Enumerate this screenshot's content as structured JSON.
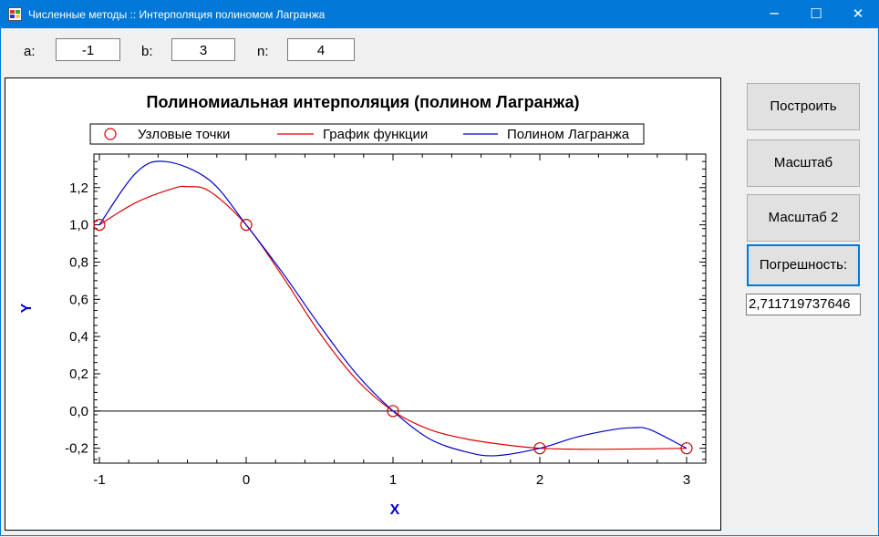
{
  "window": {
    "title": "Численные методы :: Интерполяция полиномом Лагранжа",
    "minimize": "─",
    "maximize": "☐",
    "close": "✕"
  },
  "params": {
    "a_label": "a:",
    "a_value": "-1",
    "b_label": "b:",
    "b_value": "3",
    "n_label": "n:",
    "n_value": "4"
  },
  "buttons": {
    "build": "Построить",
    "scale": "Масштаб",
    "scale2": "Масштаб 2",
    "error": "Погрешность:"
  },
  "error_value": "2,711719737646",
  "chart_data": {
    "type": "line",
    "title": "Полиномиальная интерполяция (полином Лагранжа)",
    "xlabel": "X",
    "ylabel": "Y",
    "xlim": [
      -1,
      3
    ],
    "ylim": [
      -0.28,
      1.38
    ],
    "xticks": [
      -1,
      0,
      1,
      2,
      3
    ],
    "xtick_labels": [
      "-1",
      "0",
      "1",
      "2",
      "3"
    ],
    "yticks": [
      -0.2,
      0,
      0.2,
      0.4,
      0.6,
      0.8,
      1.0,
      1.2
    ],
    "ytick_labels": [
      "-0,2",
      "0,0",
      "0,2",
      "0,4",
      "0,6",
      "0,8",
      "1,0",
      "1,2"
    ],
    "legend_position": "top",
    "series": [
      {
        "name": "Узловые точки",
        "kind": "markers",
        "color": "#cc0000",
        "x": [
          -1,
          0,
          1,
          2,
          3
        ],
        "y": [
          1.0,
          1.0,
          0.0,
          -0.2,
          -0.2
        ]
      },
      {
        "name": "График функции",
        "kind": "line",
        "color": "#dd0000",
        "x": [
          -1,
          -0.75,
          -0.5,
          -0.4,
          -0.25,
          0,
          0.25,
          0.5,
          0.75,
          1,
          1.25,
          1.5,
          1.75,
          2,
          2.25,
          2.5,
          2.75,
          3
        ],
        "y": [
          1.0,
          1.12,
          1.195,
          1.205,
          1.18,
          1.0,
          0.72,
          0.42,
          0.17,
          0.0,
          -0.1,
          -0.15,
          -0.18,
          -0.2,
          -0.205,
          -0.205,
          -0.203,
          -0.2
        ]
      },
      {
        "name": "Полином Лагранжа",
        "kind": "line",
        "color": "#0000cc",
        "x": [
          -1,
          -0.75,
          -0.55,
          -0.25,
          0,
          0.25,
          0.5,
          0.75,
          1,
          1.25,
          1.5,
          1.7,
          2,
          2.25,
          2.5,
          2.63,
          2.75,
          3
        ],
        "y": [
          1.0,
          1.28,
          1.34,
          1.24,
          1.0,
          0.74,
          0.46,
          0.2,
          0.0,
          -0.15,
          -0.22,
          -0.24,
          -0.2,
          -0.14,
          -0.1,
          -0.09,
          -0.1,
          -0.2
        ]
      }
    ]
  }
}
